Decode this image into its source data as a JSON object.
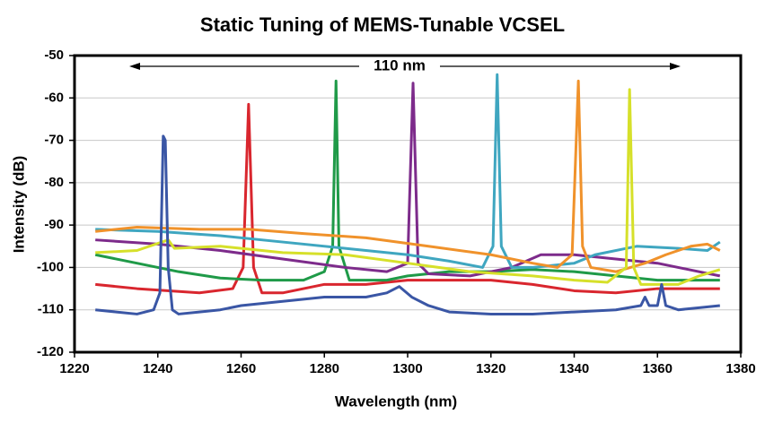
{
  "chart_data": {
    "type": "line",
    "title": "Static Tuning of MEMS-Tunable VCSEL",
    "xlabel": "Wavelength (nm)",
    "ylabel": "Intensity (dB)",
    "annotation": "110 nm",
    "xlim": [
      1220,
      1380
    ],
    "xticks": [
      1220,
      1240,
      1260,
      1280,
      1300,
      1320,
      1340,
      1360,
      1380
    ],
    "ylim": [
      -120,
      -50
    ],
    "yticks": [
      -120,
      -110,
      -100,
      -90,
      -80,
      -70,
      -60,
      -50
    ],
    "grid": true,
    "series": [
      {
        "color": "#d9262e",
        "x": [
          1225,
          1235,
          1250,
          1258,
          1260.5,
          1261.8,
          1263,
          1265,
          1270,
          1275,
          1280,
          1290,
          1300,
          1310,
          1320,
          1330,
          1340,
          1350,
          1360,
          1375
        ],
        "values": [
          -104,
          -105,
          -106,
          -105,
          -100,
          -61.5,
          -100,
          -106,
          -106,
          -105,
          -104,
          -104,
          -103,
          -103,
          -103,
          -104,
          -105.5,
          -106,
          -105,
          -105
        ]
      },
      {
        "color": "#1f9a48",
        "x": [
          1225,
          1235,
          1245,
          1255,
          1265,
          1275,
          1280,
          1282,
          1282.8,
          1283.5,
          1286,
          1290,
          1295,
          1300,
          1310,
          1320,
          1330,
          1340,
          1350,
          1360,
          1375
        ],
        "values": [
          -97,
          -99,
          -101,
          -102.5,
          -103,
          -103,
          -101,
          -95,
          -56,
          -95,
          -103,
          -103,
          -103,
          -102,
          -101,
          -101,
          -100.5,
          -101,
          -102,
          -103,
          -103
        ]
      },
      {
        "color": "#7d2b8b",
        "x": [
          1225,
          1240,
          1255,
          1270,
          1285,
          1295,
          1300,
          1301.3,
          1302.5,
          1305,
          1315,
          1325,
          1332,
          1340,
          1350,
          1360,
          1370,
          1375
        ],
        "values": [
          -93.5,
          -94.5,
          -96,
          -98,
          -100,
          -101,
          -99,
          -56.5,
          -99,
          -101.5,
          -102,
          -100,
          -97,
          -97,
          -98,
          -99,
          -101,
          -102
        ]
      },
      {
        "color": "#3fa6c0",
        "x": [
          1225,
          1240,
          1255,
          1270,
          1285,
          1300,
          1310,
          1318,
          1320.5,
          1321.5,
          1322.5,
          1325,
          1330,
          1340,
          1345,
          1355,
          1365,
          1372,
          1375
        ],
        "values": [
          -91,
          -91.5,
          -92.5,
          -94,
          -95.5,
          -97,
          -98.5,
          -100,
          -95,
          -54.5,
          -95,
          -100,
          -100,
          -99,
          -97,
          -95,
          -95.5,
          -96,
          -94
        ]
      },
      {
        "color": "#f0922b",
        "x": [
          1225,
          1235,
          1250,
          1262,
          1275,
          1290,
          1305,
          1320,
          1330,
          1336,
          1339.5,
          1341,
          1342,
          1344,
          1350,
          1357,
          1362,
          1368,
          1372,
          1375
        ],
        "values": [
          -91.5,
          -90.5,
          -91,
          -91,
          -92,
          -93,
          -95,
          -97,
          -99,
          -100,
          -97,
          -56,
          -95,
          -100,
          -101,
          -99,
          -97,
          -95,
          -94.5,
          -96
        ]
      },
      {
        "color": "#d6e02a",
        "x": [
          1225,
          1235,
          1242.5,
          1244,
          1255,
          1270,
          1285,
          1300,
          1315,
          1330,
          1340,
          1348,
          1352.5,
          1353.3,
          1354.3,
          1356,
          1365,
          1370,
          1375
        ],
        "values": [
          -96.5,
          -96,
          -93.5,
          -95.5,
          -95,
          -96.5,
          -97,
          -99,
          -101,
          -102,
          -103,
          -103.5,
          -100,
          -58,
          -100,
          -104,
          -104,
          -102,
          -100.5
        ]
      },
      {
        "color": "#3a56a5",
        "x": [
          1225,
          1230,
          1235,
          1239,
          1240.5,
          1241.3,
          1241.8,
          1242.5,
          1243.5,
          1245,
          1250,
          1255,
          1260,
          1270,
          1280,
          1290,
          1295,
          1298,
          1301,
          1305,
          1310,
          1320,
          1330,
          1340,
          1350,
          1356,
          1357,
          1358,
          1360,
          1361,
          1362,
          1365,
          1370,
          1375
        ],
        "values": [
          -110,
          -110.5,
          -111,
          -110,
          -106,
          -69,
          -70,
          -100,
          -110,
          -111,
          -110.5,
          -110,
          -109,
          -108,
          -107,
          -107,
          -106,
          -104.5,
          -107,
          -109,
          -110.5,
          -111,
          -111,
          -110.5,
          -110,
          -109,
          -107,
          -109,
          -109,
          -104,
          -109,
          -110,
          -109.5,
          -109
        ]
      }
    ]
  }
}
